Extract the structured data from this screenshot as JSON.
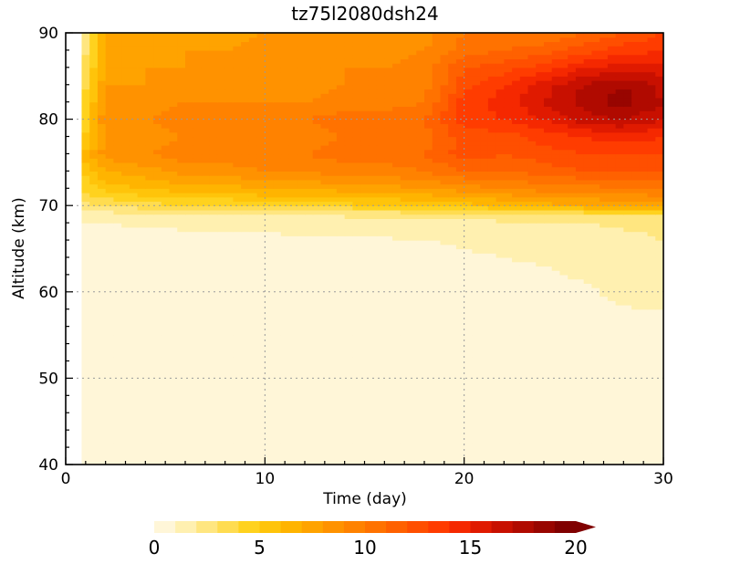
{
  "chart_data": {
    "type": "heatmap",
    "title": "tz75l2080dsh24",
    "xlabel": "Time (day)",
    "ylabel": "Altitude (km)",
    "xlim": [
      0,
      30
    ],
    "ylim": [
      40,
      90
    ],
    "x_ticks": [
      0,
      10,
      20,
      30
    ],
    "y_ticks": [
      40,
      50,
      60,
      70,
      80,
      90
    ],
    "grid": "dotted at ticks",
    "colorbar": {
      "orientation": "horizontal",
      "position": "bottom",
      "min": 0,
      "max": 20,
      "step": 1,
      "extend": "max",
      "tick_values": [
        0,
        5,
        10,
        15,
        20
      ],
      "colors": [
        "#fff6d8",
        "#fff0b0",
        "#ffe680",
        "#ffdc50",
        "#ffd21e",
        "#ffc40a",
        "#ffb400",
        "#ffa300",
        "#ff9200",
        "#ff8200",
        "#ff7200",
        "#ff6100",
        "#ff4f00",
        "#ff3c00",
        "#f52800",
        "#e01a00",
        "#c81000",
        "#b00a00",
        "#980500",
        "#800000"
      ]
    },
    "data_note_start_day": 0.8,
    "grid_days": [
      0.8,
      2,
      4,
      6,
      8,
      10,
      12,
      14,
      16,
      18,
      20,
      22,
      24,
      26,
      28,
      30
    ],
    "grid_altitudes": [
      40,
      55,
      60,
      63,
      66,
      68,
      69,
      70,
      72,
      74,
      76,
      78,
      80,
      82,
      84,
      86,
      88,
      90
    ],
    "values": [
      [
        0.2,
        0.2,
        0.2,
        0.2,
        0.2,
        0.2,
        0.2,
        0.2,
        0.2,
        0.2,
        0.2,
        0.2,
        0.2,
        0.2,
        0.2,
        0.2
      ],
      [
        0.3,
        0.3,
        0.3,
        0.3,
        0.3,
        0.3,
        0.3,
        0.3,
        0.3,
        0.3,
        0.3,
        0.3,
        0.3,
        0.3,
        0.4,
        0.4
      ],
      [
        0.4,
        0.4,
        0.4,
        0.4,
        0.4,
        0.4,
        0.4,
        0.4,
        0.4,
        0.4,
        0.5,
        0.5,
        0.6,
        0.8,
        1.3,
        1.5
      ],
      [
        0.5,
        0.5,
        0.5,
        0.5,
        0.5,
        0.5,
        0.5,
        0.5,
        0.6,
        0.6,
        0.8,
        0.9,
        1.0,
        1.3,
        1.6,
        1.8
      ],
      [
        0.6,
        0.6,
        0.7,
        0.7,
        0.7,
        0.8,
        0.8,
        0.9,
        0.9,
        1.0,
        1.1,
        1.2,
        1.3,
        1.6,
        1.8,
        2.0
      ],
      [
        1.0,
        1.0,
        1.1,
        1.2,
        1.3,
        1.3,
        1.4,
        1.4,
        1.5,
        1.5,
        1.6,
        1.8,
        1.9,
        2.0,
        2.1,
        2.2
      ],
      [
        1.5,
        1.6,
        1.7,
        1.9,
        2.0,
        2.1,
        2.1,
        2.2,
        2.3,
        2.4,
        2.6,
        2.7,
        2.8,
        3.0,
        3.1,
        3.2
      ],
      [
        2.5,
        3.0,
        3.5,
        4.0,
        4.0,
        4.5,
        4.5,
        4.5,
        5.0,
        5.0,
        5.5,
        6.0,
        6.5,
        7.0,
        7.0,
        7.5
      ],
      [
        4.0,
        5.5,
        6.0,
        6.5,
        6.5,
        7.0,
        7.0,
        7.5,
        7.5,
        8.0,
        8.5,
        9.0,
        9.5,
        9.5,
        10.0,
        10.0
      ],
      [
        5.0,
        7.0,
        7.5,
        8.5,
        8.5,
        9.0,
        9.0,
        9.5,
        9.5,
        10.0,
        11.0,
        11.0,
        11.5,
        12.0,
        12.0,
        12.0
      ],
      [
        6.0,
        8.5,
        9.0,
        9.5,
        9.5,
        10.0,
        10.0,
        10.5,
        10.5,
        11.0,
        12.5,
        12.0,
        12.5,
        13.0,
        13.0,
        13.0
      ],
      [
        4.5,
        8.0,
        8.5,
        9.0,
        9.0,
        9.5,
        9.5,
        10.0,
        10.0,
        10.5,
        12.5,
        12.5,
        13.5,
        14.0,
        14.5,
        14.0
      ],
      [
        4.0,
        9.0,
        9.0,
        9.5,
        9.5,
        10.0,
        10.0,
        10.5,
        10.5,
        11.0,
        13.5,
        14.0,
        15.0,
        16.5,
        17.0,
        16.0
      ],
      [
        3.5,
        8.5,
        8.5,
        9.0,
        9.0,
        9.0,
        9.0,
        9.5,
        9.5,
        10.0,
        13.5,
        14.5,
        16.0,
        17.5,
        18.5,
        17.0
      ],
      [
        3.0,
        8.0,
        8.0,
        8.5,
        8.5,
        8.5,
        8.5,
        9.0,
        9.0,
        9.5,
        12.5,
        14.0,
        15.5,
        17.0,
        18.0,
        16.5
      ],
      [
        2.5,
        7.5,
        8.0,
        8.0,
        8.5,
        8.5,
        8.5,
        9.0,
        9.0,
        9.5,
        12.0,
        12.5,
        13.5,
        15.0,
        15.5,
        15.5
      ],
      [
        2.0,
        7.5,
        7.5,
        8.0,
        8.0,
        8.5,
        8.5,
        8.5,
        8.5,
        9.0,
        10.5,
        11.0,
        11.5,
        12.5,
        13.5,
        14.0
      ],
      [
        1.5,
        7.0,
        7.5,
        7.5,
        7.5,
        8.0,
        8.0,
        8.0,
        8.0,
        8.5,
        10.0,
        10.0,
        10.0,
        11.0,
        12.0,
        13.0
      ]
    ]
  }
}
